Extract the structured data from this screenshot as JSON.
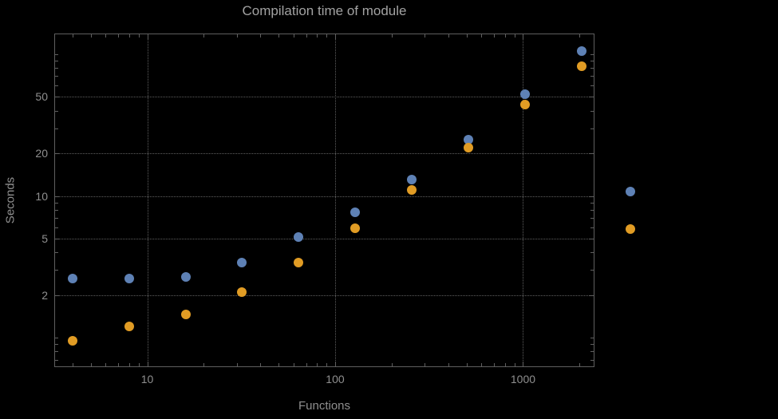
{
  "chart_data": {
    "type": "scatter",
    "title": "Compilation time of module",
    "xlabel": "Functions",
    "ylabel": "Seconds",
    "x_scale": "log",
    "y_scale": "log",
    "xlim": [
      3.2,
      2400
    ],
    "ylim": [
      0.62,
      140
    ],
    "x_ticks": [
      10,
      100,
      1000
    ],
    "x_tick_labels": [
      "10",
      "100",
      "1000"
    ],
    "y_ticks": [
      2,
      5,
      10,
      20,
      50
    ],
    "y_tick_labels": [
      "2",
      "5",
      "10",
      "20",
      "50"
    ],
    "grid": "dotted",
    "legend_position": "right-of-plot",
    "x": [
      4,
      8,
      16,
      32,
      64,
      128,
      256,
      512,
      1024,
      2048
    ],
    "series": [
      {
        "name": "blue",
        "color": "#5e81b5",
        "values": [
          2.6,
          2.6,
          2.7,
          3.4,
          5.1,
          7.7,
          13,
          25,
          52,
          105
        ]
      },
      {
        "name": "orange",
        "color": "#e19c24",
        "values": [
          0.95,
          1.2,
          1.45,
          2.1,
          3.4,
          5.9,
          11,
          22,
          44,
          82
        ]
      }
    ],
    "colors": {
      "background": "#000000",
      "grid": "#5f5f5f",
      "frame": "#5f5f5f",
      "tick_label": "#8f8f8f",
      "title": "#a2a2a2",
      "axis_label": "#8f8f8f"
    }
  }
}
